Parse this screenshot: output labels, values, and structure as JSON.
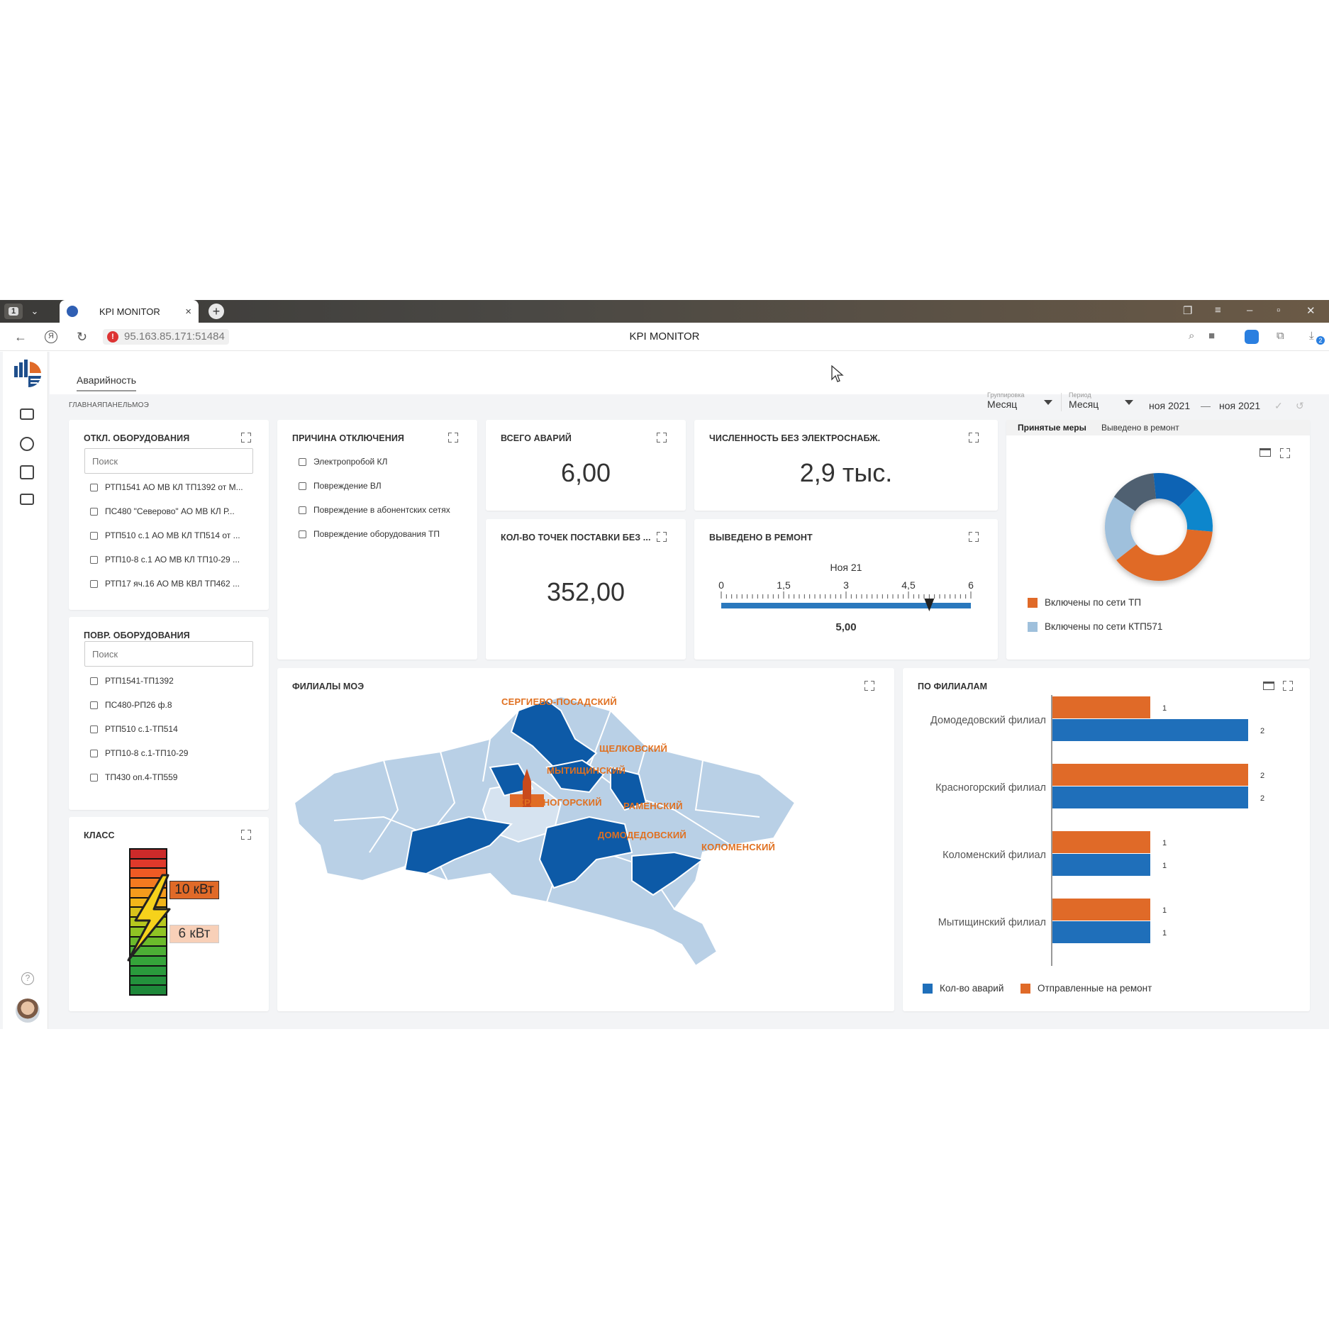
{
  "browser": {
    "tab_count": "1",
    "tab_title": "KPI MONITOR",
    "tab_close": "×",
    "new_tab": "+",
    "url": "95.163.85.171:51484",
    "page_title": "KPI MONITOR",
    "downloads_badge": "2"
  },
  "app": {
    "top_tab": "Аварийность",
    "breadcrumb": "ГЛАВНАЯПАНЕЛЬМОЭ",
    "filters": {
      "grouping_label": "Группировка",
      "grouping_value": "Месяц",
      "period_label": "Период",
      "period_value": "Месяц",
      "date_from": "ноя 2021",
      "date_sep": "—",
      "date_to": "ноя 2021"
    }
  },
  "equip_off": {
    "title": "ОТКЛ. ОБОРУДОВАНИЯ",
    "search_placeholder": "Поиск",
    "items": [
      "РТП1541 АО МВ КЛ ТП1392 от М...",
      "ПС480 \"Северово\" АО МВ КЛ Р...",
      "РТП510 с.1 АО МВ КЛ ТП514 от ...",
      "РТП10-8 с.1 АО МВ КЛ ТП10-29 ...",
      "РТП17 яч.16 АО МВ КВЛ ТП462 ..."
    ]
  },
  "equip_dmg": {
    "title": "ПОВР. ОБОРУДОВАНИЯ",
    "search_placeholder": "Поиск",
    "items": [
      "РТП1541-ТП1392",
      "ПС480-РП26 ф.8",
      "РТП510 с.1-ТП514",
      "РТП10-8 с.1-ТП10-29",
      "ТП430 оп.4-ТП559"
    ]
  },
  "klass": {
    "title": "КЛАСС",
    "label_high": "10 кВт",
    "label_low": "6 кВт",
    "colors": [
      "#cc2a2a",
      "#e0392b",
      "#ef5a24",
      "#f47a20",
      "#f59b1c",
      "#f2b51a",
      "#d9c21a",
      "#b6c81e",
      "#8fc424",
      "#6bbb2b",
      "#4caf35",
      "#35a43a",
      "#2a9a3c",
      "#23913c",
      "#1e883a"
    ]
  },
  "cause": {
    "title": "ПРИЧИНА ОТКЛЮЧЕНИЯ",
    "items": [
      "Электропробой КЛ",
      "Повреждение ВЛ",
      "Повреждение в абонентских сетях",
      "Повреждение оборудования ТП"
    ]
  },
  "total": {
    "title": "ВСЕГО АВАРИЙ",
    "value": "6,00"
  },
  "population": {
    "title": "ЧИСЛЕННОСТЬ БЕЗ ЭЛЕКТРОСНАБЖ.",
    "value": "2,9 тыс."
  },
  "points": {
    "title": "КОЛ-ВО ТОЧЕК ПОСТАВКИ БЕЗ ...",
    "value": "352,00"
  },
  "repair": {
    "title": "ВЫВЕДЕНО В РЕМОНТ",
    "period": "Ноя 21",
    "ticks": [
      "0",
      "1,5",
      "3",
      "4,5",
      "6"
    ],
    "min": 0,
    "max": 6,
    "value": 5,
    "value_label": "5,00"
  },
  "donut": {
    "tabs": [
      "Принятые меры",
      "Выведено в ремонт"
    ],
    "legend": [
      {
        "label": "Включены по сети ТП",
        "color": "#e06a28"
      },
      {
        "label": "Включены по сети КТП571",
        "color": "#9fc0dc"
      }
    ],
    "segment_colors": [
      "#0b64b4",
      "#0a86cc",
      "#e06a28",
      "#9fc0dc",
      "#4f6171"
    ]
  },
  "map": {
    "title": "ФИЛИАЛЫ МОЭ",
    "labels": [
      "СЕРГИЕВО-ПОСАДСКИЙ",
      "ЩЕЛКОВСКИЙ",
      "МЫТИЩИНСКИЙ",
      "КРАСНОГОРСКИЙ",
      "РАМЕНСКИЙ",
      "ДОМОДЕДОВСКИЙ",
      "КОЛОМЕНСКИЙ"
    ],
    "colors": {
      "highlight": "#0d5aa7",
      "base": "#b9d0e6",
      "center": "#d6e3f0",
      "label": "#e07020"
    }
  },
  "branches": {
    "title": "ПО ФИЛИАЛАМ",
    "chart_data": {
      "type": "bar",
      "orientation": "horizontal",
      "categories": [
        "Домодедовский филиал",
        "Красногорский филиал",
        "Коломенский филиал",
        "Мытищинский филиал"
      ],
      "series": [
        {
          "name": "Отправленные на ремонт",
          "values": [
            1,
            2,
            1,
            1
          ],
          "color": "#e06a28"
        },
        {
          "name": "Кол-во аварий",
          "values": [
            2,
            2,
            1,
            1
          ],
          "color": "#1f6fba"
        }
      ],
      "xlim": [
        0,
        2
      ],
      "legend_position": "bottom",
      "legend": [
        {
          "label": "Кол-во аварий",
          "color": "#1f6fba"
        },
        {
          "label": "Отправленные на ремонт",
          "color": "#e06a28"
        }
      ]
    }
  }
}
